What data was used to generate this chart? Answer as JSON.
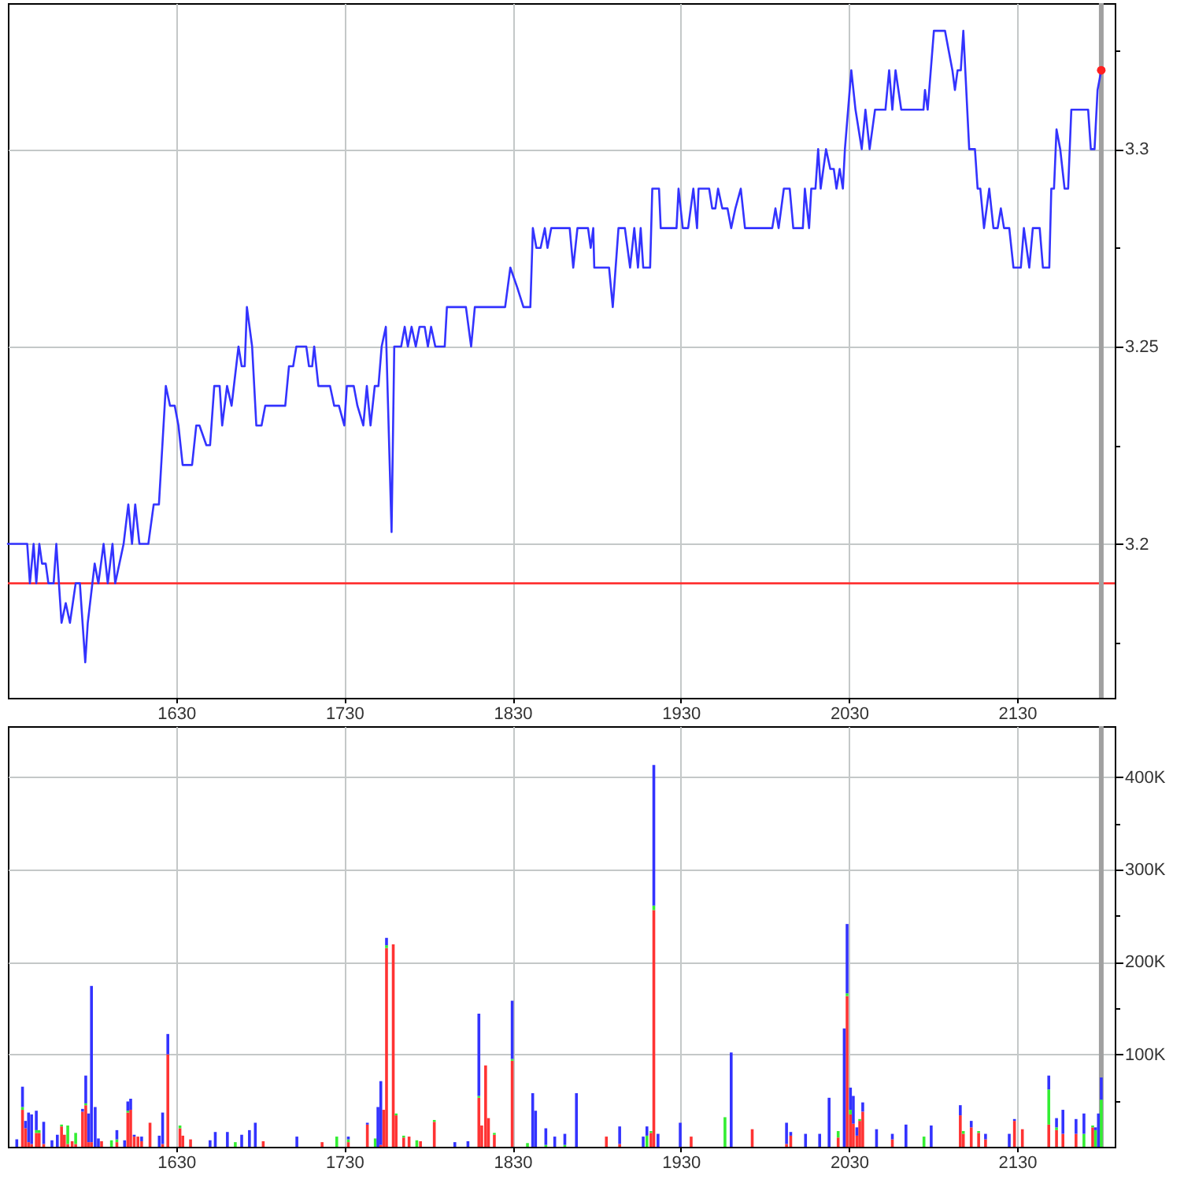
{
  "chart_data": [
    {
      "type": "line",
      "x": [
        1530,
        1541.5,
        1543.1,
        1545.3,
        1546.9,
        1548.7,
        1550.3,
        1552.5,
        1554.1,
        1557.2,
        1558.8,
        1561.9,
        1564.4,
        1566.9,
        1570.3,
        1572.8,
        1576,
        1577.5,
        1581.6,
        1583.8,
        1586.9,
        1589.4,
        1592.2,
        1593.8,
        1596.3,
        1598.8,
        1601.6,
        1603.8,
        1605.7,
        1608.2,
        1613.5,
        1616.7,
        1619.8,
        1623.9,
        1626.4,
        1629.2,
        1631.4,
        1633.9,
        1639.5,
        1642,
        1643.9,
        1648,
        1650.2,
        1652.7,
        1655.9,
        1657.4,
        1660.3,
        1663,
        1667.1,
        1669,
        1670.8,
        1672.1,
        1675.2,
        1677.7,
        1680.8,
        1683,
        1694.9,
        1697.1,
        1699.6,
        1701.5,
        1707.4,
        1709,
        1710.9,
        1712.1,
        1714.6,
        1721.5,
        1724,
        1726.8,
        1730,
        1731.5,
        1735.6,
        1737.8,
        1741.3,
        1743.4,
        1745.6,
        1748.1,
        1750.3,
        1752.2,
        1754.7,
        1758.1,
        1759.7,
        1763.8,
        1765.9,
        1767.8,
        1770,
        1772.5,
        1774.7,
        1777.8,
        1779.7,
        1781.6,
        1784.1,
        1789.7,
        1791,
        1802.3,
        1805.4,
        1807.6,
        1825.6,
        1828.7,
        1832.8,
        1836.5,
        1840.6,
        1842.1,
        1844.2,
        1846.7,
        1849.2,
        1850.8,
        1853,
        1864,
        1866.1,
        1868.6,
        1874.9,
        1876.5,
        1878,
        1878.6,
        1887.4,
        1889.6,
        1893,
        1896.8,
        1899.9,
        1902.4,
        1904.6,
        1906.2,
        1907.7,
        1911.8,
        1913.1,
        1917.1,
        1918.1,
        1927.5,
        1928.7,
        1931.2,
        1934.4,
        1937.5,
        1939.7,
        1940.6,
        1946.9,
        1948.7,
        1950.6,
        1952.2,
        1954.7,
        1957.8,
        1960,
        1962.5,
        1965.7,
        1968.2,
        1984.4,
        1986.3,
        1988.2,
        1991.3,
        1994.8,
        1996.9,
        2002.6,
        2003.8,
        2006.3,
        2007.6,
        2010.1,
        2011.7,
        2013.2,
        2016.4,
        2018.9,
        2021,
        2022.6,
        2024.5,
        2026.4,
        2027.6,
        2031.4,
        2033.9,
        2037.6,
        2039.8,
        2042.3,
        2045.5,
        2051.7,
        2053.9,
        2055.8,
        2057.7,
        2061.1,
        2074.3,
        2075.2,
        2076.8,
        2080.5,
        2087.1,
        2089.3,
        2091.5,
        2093,
        2094.6,
        2096.5,
        2098,
        2101.5,
        2104.9,
        2106.5,
        2108.1,
        2110.3,
        2113.4,
        2115.9,
        2118.4,
        2120.3,
        2122.2,
        2125.3,
        2127.8,
        2132.2,
        2134,
        2137.2,
        2139.3,
        2143.4,
        2145.3,
        2149.1,
        2150.3,
        2151.9,
        2153.4,
        2155.6,
        2158.2,
        2160.3,
        2162.2,
        2172.2,
        2173.8,
        2176,
        2177.8,
        2180
      ],
      "series": [
        {
          "color": "#3333ff",
          "values": [
            3.2,
            3.2,
            3.19,
            3.2,
            3.19,
            3.2,
            3.195,
            3.195,
            3.19,
            3.19,
            3.2,
            3.18,
            3.185,
            3.18,
            3.19,
            3.19,
            3.17,
            3.18,
            3.195,
            3.19,
            3.2,
            3.19,
            3.2,
            3.19,
            3.195,
            3.2,
            3.21,
            3.2,
            3.21,
            3.2,
            3.2,
            3.21,
            3.21,
            3.24,
            3.235,
            3.235,
            3.23,
            3.22,
            3.22,
            3.23,
            3.23,
            3.225,
            3.225,
            3.24,
            3.24,
            3.23,
            3.24,
            3.235,
            3.25,
            3.245,
            3.245,
            3.26,
            3.25,
            3.23,
            3.23,
            3.235,
            3.235,
            3.245,
            3.245,
            3.25,
            3.25,
            3.245,
            3.245,
            3.25,
            3.24,
            3.24,
            3.235,
            3.235,
            3.23,
            3.24,
            3.24,
            3.235,
            3.23,
            3.24,
            3.23,
            3.24,
            3.24,
            3.25,
            3.255,
            3.203,
            3.25,
            3.25,
            3.255,
            3.25,
            3.255,
            3.25,
            3.255,
            3.255,
            3.25,
            3.255,
            3.25,
            3.25,
            3.26,
            3.26,
            3.25,
            3.26,
            3.26,
            3.27,
            3.265,
            3.26,
            3.26,
            3.28,
            3.275,
            3.275,
            3.28,
            3.275,
            3.28,
            3.28,
            3.27,
            3.28,
            3.28,
            3.275,
            3.28,
            3.27,
            3.27,
            3.26,
            3.28,
            3.28,
            3.27,
            3.28,
            3.27,
            3.28,
            3.27,
            3.27,
            3.29,
            3.29,
            3.28,
            3.28,
            3.29,
            3.28,
            3.28,
            3.29,
            3.28,
            3.29,
            3.29,
            3.285,
            3.285,
            3.29,
            3.285,
            3.285,
            3.28,
            3.285,
            3.29,
            3.28,
            3.28,
            3.285,
            3.28,
            3.29,
            3.29,
            3.28,
            3.28,
            3.29,
            3.28,
            3.29,
            3.29,
            3.3,
            3.29,
            3.3,
            3.295,
            3.295,
            3.29,
            3.295,
            3.29,
            3.3,
            3.32,
            3.31,
            3.3,
            3.31,
            3.3,
            3.31,
            3.31,
            3.32,
            3.31,
            3.32,
            3.31,
            3.31,
            3.315,
            3.31,
            3.33,
            3.33,
            3.325,
            3.32,
            3.315,
            3.32,
            3.32,
            3.33,
            3.3,
            3.3,
            3.29,
            3.29,
            3.28,
            3.29,
            3.28,
            3.28,
            3.285,
            3.28,
            3.28,
            3.27,
            3.27,
            3.28,
            3.27,
            3.28,
            3.28,
            3.27,
            3.27,
            3.29,
            3.29,
            3.305,
            3.3,
            3.29,
            3.29,
            3.31,
            3.31,
            3.3,
            3.3,
            3.315,
            3.32
          ]
        },
        {
          "type": "scatter",
          "marker": "circle",
          "color": "#ff2020",
          "x": [
            2180
          ],
          "values": [
            3.32
          ]
        }
      ],
      "xlim": [
        1530,
        2188
      ],
      "ylim": [
        3.161,
        3.337
      ],
      "xticks": [
        1630,
        1730,
        1830,
        1930,
        2030,
        2130
      ],
      "yticks": [
        {
          "value": 3.175,
          "label": null
        },
        3.2,
        {
          "value": 3.225,
          "label": null
        },
        3.25,
        {
          "value": 3.275,
          "label": null
        },
        3.3,
        {
          "value": 3.325,
          "label": null
        }
      ],
      "ref_lines": [
        {
          "axis": "y",
          "value": 3.19,
          "color": "#ff3333"
        },
        {
          "axis": "x",
          "value": 2180,
          "color": "#a0a0a0"
        }
      ],
      "grid": true
    },
    {
      "type": "bar",
      "stacked": true,
      "x": [
        1535.3,
        1538.7,
        1540.5,
        1542.3,
        1544.1,
        1546.9,
        1548.6,
        1551.3,
        1556.2,
        1559.4,
        1561.9,
        1563.6,
        1565.6,
        1568.2,
        1570.3,
        1574.4,
        1576.3,
        1578,
        1579.7,
        1581.9,
        1583.8,
        1585.7,
        1591.6,
        1594.8,
        1599.4,
        1601.3,
        1603,
        1605.1,
        1607.3,
        1609.5,
        1614.5,
        1620,
        1622,
        1625.1,
        1632.3,
        1634,
        1638.6,
        1650.2,
        1653.3,
        1660.5,
        1665.2,
        1669,
        1673.6,
        1677.1,
        1681.8,
        1701.8,
        1716.8,
        1725.5,
        1732.4,
        1743.7,
        1748.4,
        1750,
        1751.7,
        1753.4,
        1755.1,
        1759.1,
        1760.8,
        1765.3,
        1768.5,
        1773.1,
        1775.3,
        1783.5,
        1795.7,
        1803.5,
        1810,
        1811.7,
        1814,
        1815.7,
        1819.2,
        1829.8,
        1838.9,
        1842,
        1843.7,
        1849.8,
        1855.1,
        1861.1,
        1868,
        1885.8,
        1893.7,
        1907.7,
        1909.9,
        1912.3,
        1914,
        1916.5,
        1929.7,
        1936.2,
        1956.3,
        1960,
        1972.5,
        1992.9,
        1995.4,
        2004.2,
        2012.6,
        2018.2,
        2023.6,
        2027.2,
        2028.9,
        2030.9,
        2032.6,
        2034.7,
        2036.4,
        2038.2,
        2046.4,
        2055.8,
        2063.9,
        2074.6,
        2078.9,
        2096.2,
        2098,
        2102.7,
        2107.1,
        2111.2,
        2125.3,
        2128.4,
        2133.1,
        2148.8,
        2153.4,
        2157.2,
        2165,
        2169.7,
        2174.9,
        2176.6,
        2178.3,
        2180
      ],
      "series": [
        {
          "color": "#ff3333",
          "values": [
            null,
            40000,
            20000,
            5000,
            3000,
            15000,
            15000,
            3000,
            null,
            null,
            22000,
            13000,
            3000,
            6000,
            3000,
            38000,
            45000,
            5000,
            5000,
            null,
            null,
            6000,
            null,
            5000,
            null,
            37000,
            40000,
            11000,
            11000,
            6000,
            26000,
            null,
            3000,
            100000,
            20000,
            12000,
            8000,
            null,
            null,
            null,
            null,
            null,
            null,
            null,
            6000,
            null,
            5000,
            null,
            5000,
            24000,
            null,
            null,
            2000,
            40000,
            215000,
            219000,
            34000,
            10000,
            11000,
            null,
            6000,
            27000,
            null,
            null,
            53000,
            23000,
            88000,
            31000,
            13000,
            93000,
            null,
            null,
            null,
            null,
            null,
            null,
            null,
            11000,
            3000,
            null,
            null,
            15000,
            256000,
            null,
            null,
            11000,
            null,
            null,
            19000,
            3000,
            12000,
            null,
            null,
            null,
            10000,
            null,
            163000,
            35000,
            25000,
            12000,
            28000,
            38000,
            null,
            8000,
            null,
            null,
            null,
            34000,
            14000,
            21000,
            15000,
            8000,
            null,
            28000,
            19000,
            24000,
            18000,
            14000,
            14000,
            null,
            21000,
            null,
            null,
            null
          ]
        },
        {
          "color": "#33ee33",
          "values": [
            null,
            3000,
            null,
            null,
            null,
            3000,
            3000,
            null,
            null,
            null,
            2000,
            null,
            20000,
            null,
            12000,
            null,
            2000,
            null,
            null,
            null,
            null,
            null,
            7000,
            3000,
            null,
            2000,
            null,
            null,
            null,
            null,
            null,
            null,
            null,
            null,
            3000,
            null,
            null,
            null,
            null,
            null,
            5000,
            null,
            null,
            null,
            null,
            null,
            null,
            11000,
            3000,
            null,
            9000,
            null,
            null,
            null,
            3000,
            null,
            2000,
            2000,
            null,
            7000,
            null,
            2000,
            null,
            null,
            2000,
            null,
            null,
            null,
            2000,
            2000,
            4000,
            null,
            null,
            2000,
            null,
            2000,
            null,
            null,
            null,
            null,
            12000,
            2000,
            5000,
            null,
            null,
            null,
            32000,
            null,
            null,
            null,
            null,
            null,
            null,
            null,
            7000,
            null,
            3000,
            5000,
            null,
            null,
            2000,
            null,
            null,
            null,
            null,
            11000,
            null,
            null,
            3000,
            null,
            2000,
            null,
            null,
            null,
            null,
            38000,
            3000,
            null,
            null,
            14000,
            2000,
            18000,
            null,
            51000
          ]
        },
        {
          "color": "#3333ff",
          "values": [
            8000,
            22000,
            8000,
            32000,
            32000,
            21000,
            null,
            24000,
            7000,
            13000,
            null,
            null,
            null,
            null,
            null,
            3000,
            30000,
            31000,
            169000,
            43000,
            9000,
            null,
            null,
            10000,
            7000,
            10000,
            12000,
            2000,
            null,
            5000,
            null,
            12000,
            34000,
            22000,
            null,
            null,
            null,
            7000,
            16000,
            16000,
            null,
            13000,
            18000,
            26000,
            null,
            11000,
            null,
            null,
            3000,
            2000,
            null,
            43000,
            69000,
            null,
            8000,
            null,
            null,
            null,
            null,
            null,
            null,
            null,
            5000,
            6000,
            89000,
            null,
            null,
            null,
            null,
            63000,
            null,
            58000,
            39000,
            18000,
            11000,
            12000,
            58000,
            null,
            19000,
            11000,
            10000,
            null,
            152000,
            14000,
            26000,
            null,
            null,
            102000,
            null,
            23000,
            4000,
            14000,
            14000,
            53000,
            null,
            128000,
            75000,
            24000,
            30000,
            9000,
            null,
            10000,
            19000,
            6000,
            24000,
            null,
            23000,
            11000,
            null,
            7000,
            null,
            6000,
            14000,
            2000,
            null,
            15000,
            10000,
            26000,
            16000,
            22000,
            null,
            3000,
            36000,
            24000
          ]
        }
      ],
      "xlim": [
        1530,
        2188
      ],
      "ylim": [
        0,
        455000
      ],
      "xticks": [
        1630,
        1730,
        1830,
        1930,
        2030,
        2130
      ],
      "yticks": [
        {
          "value": 50000,
          "label": null
        },
        {
          "value": 100000,
          "label": "100K"
        },
        {
          "value": 150000,
          "label": null
        },
        {
          "value": 200000,
          "label": "200K"
        },
        {
          "value": 250000,
          "label": null
        },
        {
          "value": 300000,
          "label": "300K"
        },
        {
          "value": 350000,
          "label": null
        },
        {
          "value": 400000,
          "label": "400K"
        }
      ],
      "ref_lines": [
        {
          "axis": "x",
          "value": 2180,
          "color": "#a0a0a0"
        }
      ],
      "grid": true
    }
  ]
}
